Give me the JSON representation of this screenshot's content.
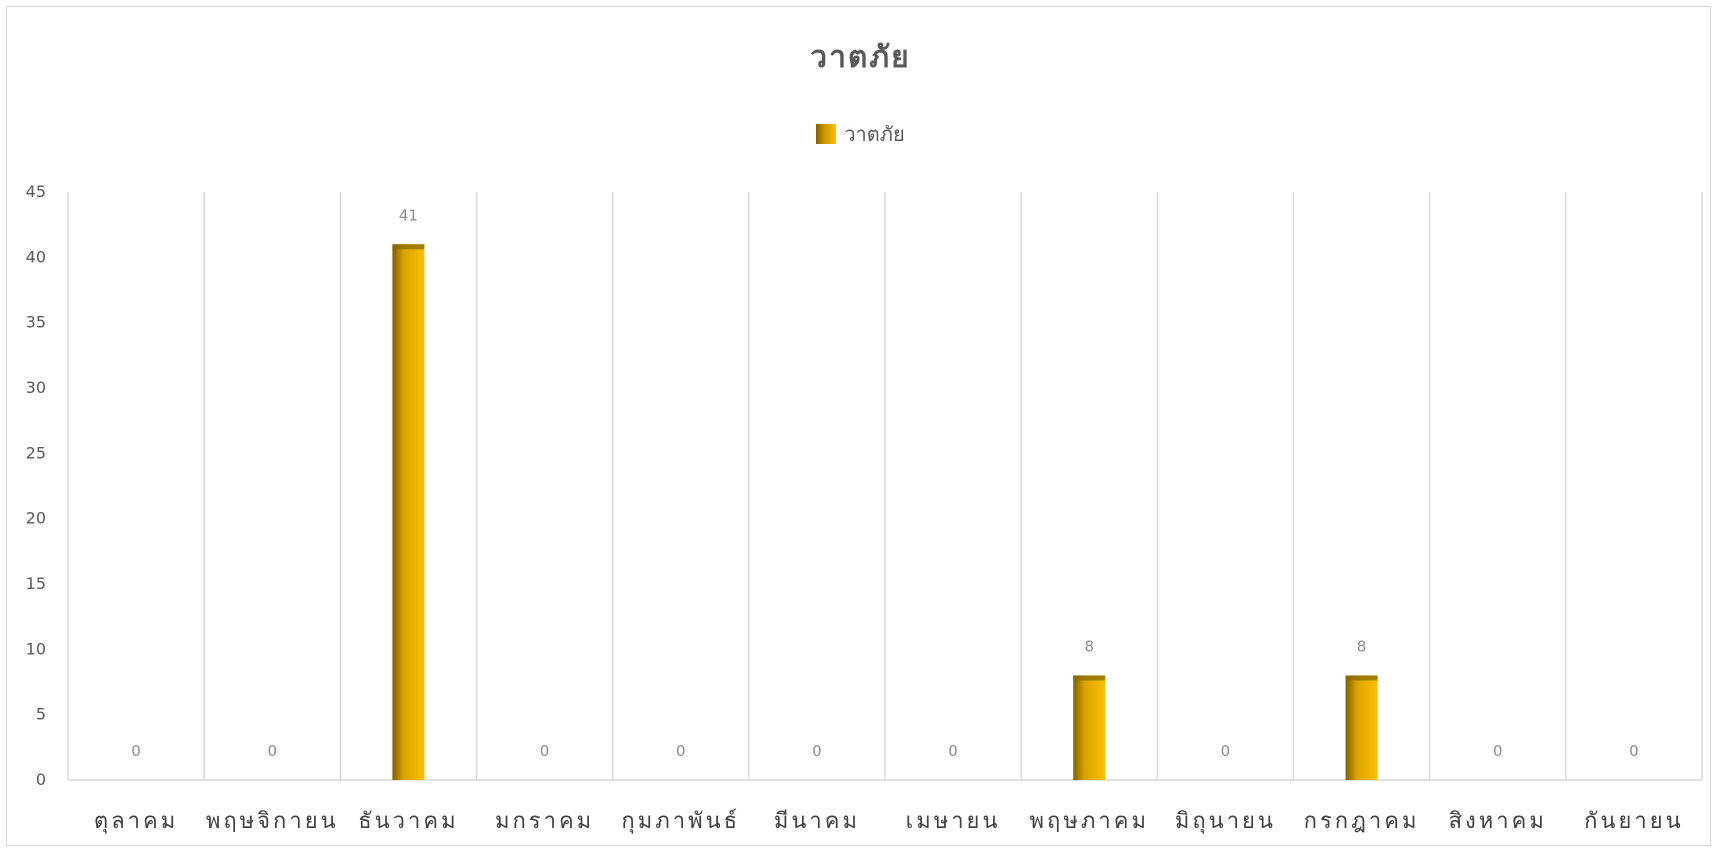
{
  "chart_data": {
    "type": "bar",
    "title": "วาตภัย",
    "legend": {
      "position": "top",
      "entries": [
        "วาตภัย"
      ]
    },
    "categories": [
      "ตุลาคม",
      "พฤษจิกายน",
      "ธันวาคม",
      "มกราคม",
      "กุมภาพันธ์",
      "มีนาคม",
      "เมษายน",
      "พฤษภาคม",
      "มิถุนายน",
      "กรกฎาคม",
      "สิงหาคม",
      "กันยายน"
    ],
    "series": [
      {
        "name": "วาตภัย",
        "values": [
          0,
          0,
          41,
          0,
          0,
          0,
          0,
          8,
          0,
          8,
          0,
          0
        ]
      }
    ],
    "ylim": [
      0,
      45
    ],
    "yticks": [
      0,
      5,
      10,
      15,
      20,
      25,
      30,
      35,
      40,
      45
    ],
    "xlabel": "",
    "ylabel": "",
    "grid": {
      "vertical": true,
      "horizontal": false
    },
    "colors": {
      "bar_dark": "#7f6000",
      "bar_light": "#ffc000",
      "grid": "#d9d9d9"
    }
  }
}
